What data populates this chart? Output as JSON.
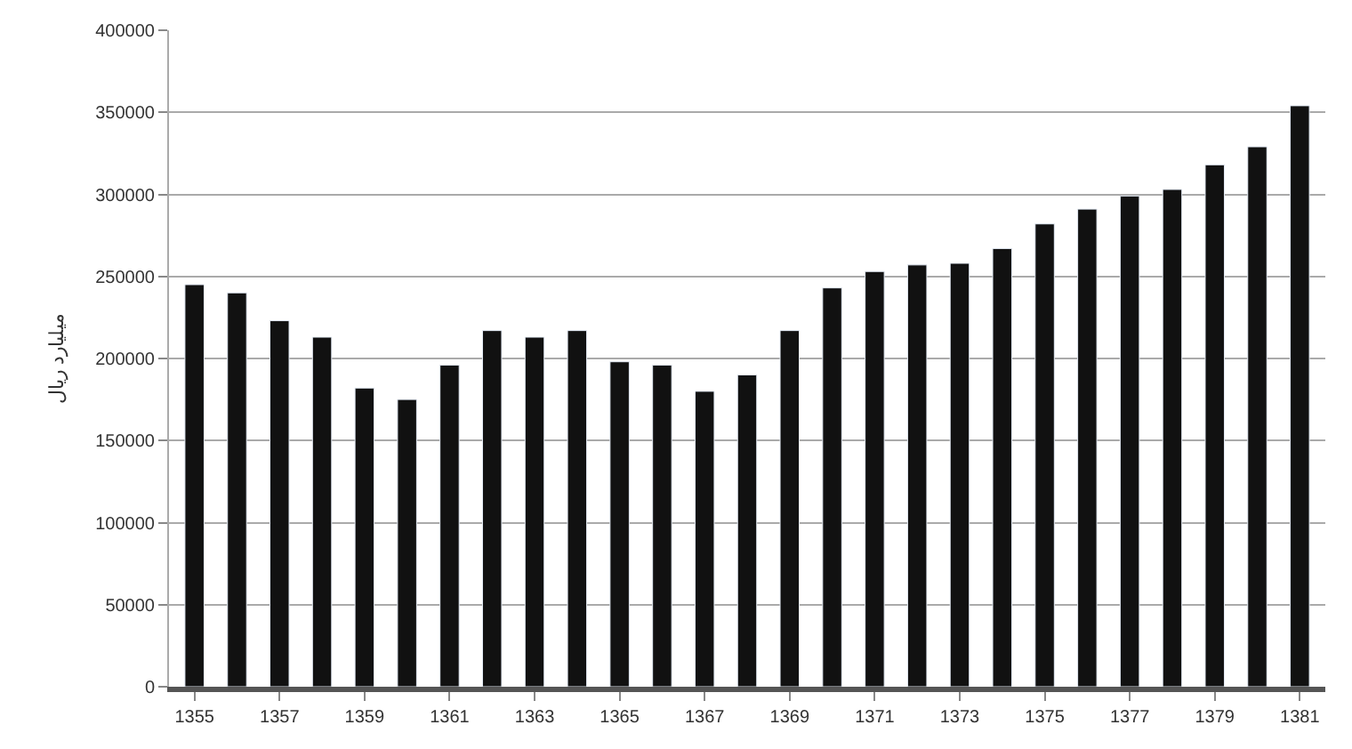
{
  "chart_data": {
    "type": "bar",
    "ylabel": "میلیارد ریال",
    "categories": [
      "1355",
      null,
      "1357",
      null,
      "1359",
      null,
      "1361",
      null,
      "1363",
      null,
      "1365",
      null,
      "1367",
      null,
      "1369",
      null,
      "1371",
      null,
      "1373",
      null,
      "1375",
      null,
      "1377",
      null,
      "1379",
      null,
      "1381"
    ],
    "values": [
      245000,
      240000,
      223000,
      213000,
      182000,
      175000,
      196000,
      217000,
      213000,
      217000,
      198000,
      196000,
      180000,
      190000,
      217000,
      243000,
      253000,
      257000,
      258000,
      267000,
      282000,
      291000,
      299000,
      303000,
      318000,
      329000,
      354000
    ],
    "color": "#111111",
    "ylim": [
      0,
      400000
    ],
    "yticks": [
      0,
      50000,
      100000,
      150000,
      200000,
      250000,
      300000,
      350000,
      400000
    ],
    "grid": "y"
  }
}
